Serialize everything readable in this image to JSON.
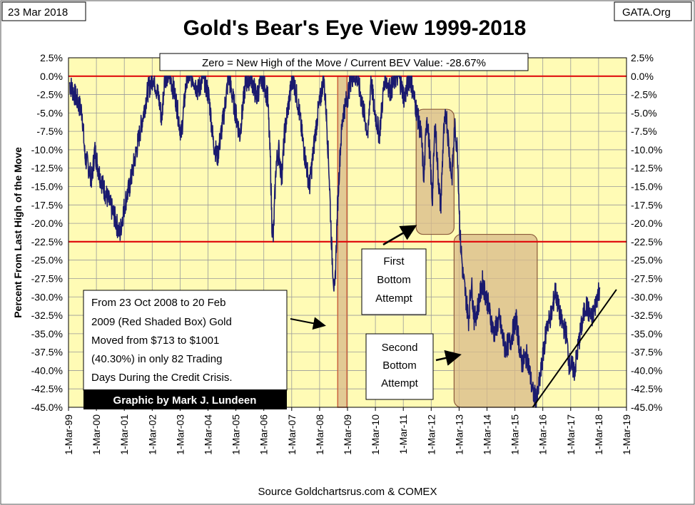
{
  "header": {
    "date": "23 Mar 2018",
    "brand": "GATA.Org",
    "title": "Gold's Bear's Eye View 1999-2018",
    "subtitle": "Zero = New High of the Move / Current BEV Value:  -28.67%"
  },
  "footer": {
    "credit": "Graphic by Mark J. Lundeen",
    "source": "Source Goldchartsrus.com & COMEX"
  },
  "annotations": {
    "crisis_lines": [
      "From 23 Oct 2008 to 20 Feb",
      "2009 (Red Shaded Box)  Gold",
      "Moved from $713 to $1001",
      "(40.30%) in only 82 Trading",
      "Days During the Credit Crisis."
    ],
    "first_bottom_lines": [
      "First",
      "Bottom",
      "Attempt"
    ],
    "second_bottom_lines": [
      "Second",
      "Bottom",
      "Attempt"
    ]
  },
  "colors": {
    "plot_background": "#fffbb5",
    "series": "#1a1a6e",
    "reference_line": "#e01010",
    "crisis_box": "#c8603c",
    "bottom_box": "#8b5a3a",
    "box_fill": "#d8b98a",
    "credit_background": "#000000",
    "credit_text": "#ffffff"
  },
  "chart_data": {
    "type": "line",
    "title": "Gold's Bear's Eye View 1999-2018",
    "ylabel": "Percent  From Last High of the Move",
    "ylim": [
      -45,
      2.5
    ],
    "ytick_step": 2.5,
    "y_axes": "left and right",
    "x_tick_labels": [
      "1-Mar-99",
      "1-Mar-00",
      "1-Mar-01",
      "1-Mar-02",
      "1-Mar-03",
      "1-Mar-04",
      "1-Mar-05",
      "1-Mar-06",
      "1-Mar-07",
      "1-Mar-08",
      "1-Mar-09",
      "1-Mar-10",
      "1-Mar-11",
      "1-Mar-12",
      "1-Mar-13",
      "1-Mar-14",
      "1-Mar-15",
      "1-Mar-16",
      "1-Mar-17",
      "1-Mar-18",
      "1-Mar-19"
    ],
    "xlim": [
      1999.16,
      2019.16
    ],
    "grid": true,
    "reference_lines": [
      0,
      -22.5
    ],
    "series": [
      {
        "x": [
          1999.2,
          1999.5,
          1999.65,
          1999.75,
          1999.85,
          2000.0,
          2000.1,
          2000.25,
          2000.4,
          2000.6,
          2000.8,
          2001.0,
          2001.1,
          2001.2,
          2001.35,
          2001.5,
          2001.7,
          2001.85,
          2002.0,
          2002.2,
          2002.4,
          2002.5,
          2002.6,
          2002.8,
          2003.0,
          2003.2,
          2003.4,
          2003.6,
          2003.8,
          2004.0,
          2004.2,
          2004.35,
          2004.5,
          2004.7,
          2004.9,
          2005.1,
          2005.3,
          2005.5,
          2005.7,
          2005.9,
          2006.1,
          2006.3,
          2006.4,
          2006.45,
          2006.5,
          2006.55,
          2006.6,
          2006.7,
          2006.8,
          2006.9,
          2007.0,
          2007.2,
          2007.4,
          2007.6,
          2007.8,
          2008.0,
          2008.1,
          2008.2,
          2008.3,
          2008.4,
          2008.5,
          2008.6,
          2008.7,
          2008.8,
          2008.9,
          2009.0,
          2009.15,
          2009.3,
          2009.5,
          2009.7,
          2009.9,
          2010.0,
          2010.1,
          2010.3,
          2010.5,
          2010.7,
          2010.9,
          2011.0,
          2011.2,
          2011.4,
          2011.6,
          2011.8,
          2011.9,
          2012.0,
          2012.1,
          2012.2,
          2012.3,
          2012.4,
          2012.5,
          2012.6,
          2012.7,
          2012.8,
          2012.9,
          2013.0,
          2013.1,
          2013.2,
          2013.3,
          2013.4,
          2013.5,
          2013.6,
          2013.7,
          2013.8,
          2013.9,
          2014.0,
          2014.2,
          2014.4,
          2014.6,
          2014.8,
          2015.0,
          2015.2,
          2015.4,
          2015.6,
          2015.8,
          2015.95,
          2016.1,
          2016.3,
          2016.5,
          2016.6,
          2016.8,
          2017.0,
          2017.1,
          2017.3,
          2017.5,
          2017.7,
          2017.9,
          2018.0,
          2018.1,
          2018.2
        ],
        "values": [
          -1,
          -3.5,
          -5,
          -11,
          -12,
          -14,
          -10,
          -13,
          -15,
          -17,
          -19,
          -21.5,
          -19,
          -17,
          -15,
          -12,
          -8,
          -5,
          -2,
          0,
          -3,
          -6,
          0,
          0,
          -3,
          -8,
          0,
          0,
          -2,
          0,
          -3,
          -9,
          -11,
          -6,
          0,
          -4,
          -8,
          -1,
          0,
          -3,
          0,
          -3,
          -12,
          -20,
          -22,
          -17,
          -12,
          -10,
          -14,
          -8,
          -5,
          0,
          -4,
          -10,
          -15,
          -8,
          -5,
          -3,
          0,
          -5,
          -13,
          -24,
          -30,
          -18,
          -10,
          -5,
          -3,
          0,
          0,
          -4,
          -8,
          0,
          -4,
          -8,
          0,
          -2,
          0,
          0,
          -3,
          0,
          -4,
          -8,
          -14,
          -5,
          -10,
          -17,
          -6,
          -13,
          -18,
          -8,
          -5,
          -10,
          -14,
          -7,
          -10,
          -22,
          -27,
          -30,
          -33,
          -28,
          -33,
          -32,
          -30,
          -28,
          -31,
          -35,
          -33,
          -37,
          -36,
          -33,
          -39,
          -38,
          -43,
          -44,
          -40,
          -34,
          -32,
          -29,
          -33,
          -35,
          -39,
          -40,
          -35,
          -31,
          -33,
          -32,
          -30,
          -28.7
        ],
        "style": "dense-noisy"
      }
    ],
    "boxes": [
      {
        "kind": "crisis",
        "x0": 2008.81,
        "x1": 2009.14,
        "y0": 0,
        "y1": -45
      },
      {
        "kind": "first-bottom",
        "x0": 2011.62,
        "x1": 2012.98,
        "y0": -4.5,
        "y1": -21.5
      },
      {
        "kind": "second-bottom",
        "x0": 2012.98,
        "x1": 2015.96,
        "y0": -21.5,
        "y1": -45
      }
    ],
    "trend_line": {
      "x": [
        2015.8,
        2018.8
      ],
      "y": [
        -45,
        -29
      ]
    },
    "legend": "none"
  }
}
